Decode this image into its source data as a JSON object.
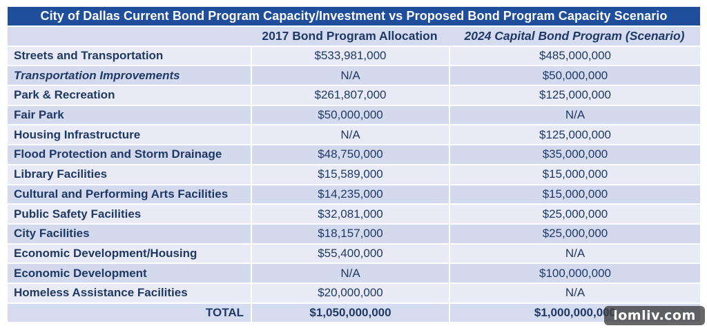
{
  "title": "City of Dallas Current Bond Program Capacity/Investment vs Proposed Bond Program Capacity Scenario",
  "columns": [
    "",
    "2017 Bond Program Allocation",
    "2024 Capital Bond Program (Scenario)"
  ],
  "rows": [
    {
      "category": "Streets and Transportation",
      "v2017": "$533,981,000",
      "v2024": "$485,000,000",
      "italic": false
    },
    {
      "category": "Transportation Improvements",
      "v2017": "N/A",
      "v2024": "$50,000,000",
      "italic": true
    },
    {
      "category": "Park & Recreation",
      "v2017": "$261,807,000",
      "v2024": "$125,000,000",
      "italic": false
    },
    {
      "category": "Fair Park",
      "v2017": "$50,000,000",
      "v2024": "N/A",
      "italic": false
    },
    {
      "category": "Housing Infrastructure",
      "v2017": "N/A",
      "v2024": "$125,000,000",
      "italic": false
    },
    {
      "category": "Flood Protection and Storm Drainage",
      "v2017": "$48,750,000",
      "v2024": "$35,000,000",
      "italic": false
    },
    {
      "category": "Library Facilities",
      "v2017": "$15,589,000",
      "v2024": "$15,000,000",
      "italic": false
    },
    {
      "category": "Cultural and Performing Arts Facilities",
      "v2017": "$14,235,000",
      "v2024": "$15,000,000",
      "italic": false
    },
    {
      "category": "Public Safety Facilities",
      "v2017": "$32,081,000",
      "v2024": "$25,000,000",
      "italic": false
    },
    {
      "category": "City Facilities",
      "v2017": "$18,157,000",
      "v2024": "$25,000,000",
      "italic": false
    },
    {
      "category": "Economic Development/Housing",
      "v2017": "$55,400,000",
      "v2024": "N/A",
      "italic": false
    },
    {
      "category": "Economic Development",
      "v2017": "N/A",
      "v2024": "$100,000,000",
      "italic": false
    },
    {
      "category": "Homeless Assistance Facilities",
      "v2017": "$20,000,000",
      "v2024": "N/A",
      "italic": false
    }
  ],
  "total": {
    "label": "TOTAL",
    "v2017": "$1,050,000,000",
    "v2024": "$1,000,000,000"
  },
  "watermark": "lomliv.com",
  "colors": {
    "title_bg": "#1f4e9c",
    "text": "#1f3864",
    "row_light": "#e8ebf5",
    "row_dark": "#d4daee"
  }
}
